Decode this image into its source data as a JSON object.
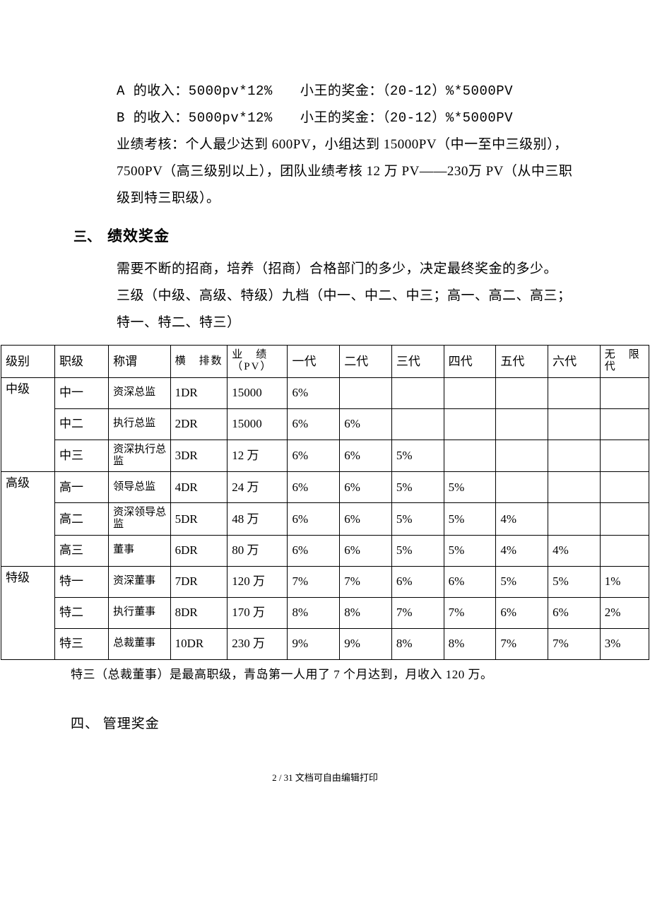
{
  "body": {
    "line1": "A 的收入：5000pv*12%　　小王的奖金：（20-12）%*5000PV",
    "line2": "B 的收入：5000pv*12%　　小王的奖金：（20-12）%*5000PV",
    "line3": "业绩考核：个人最少达到 600PV，小组达到 15000PV（中一至中三级别），7500PV（高三级别以上），团队业绩考核 12 万 PV——230万 PV（从中三职级到特三职级）。"
  },
  "sec3": {
    "num": "三、",
    "title": "绩效奖金",
    "p1": "需要不断的招商，培养（招商）合格部门的多少，决定最终奖金的多少。",
    "p2": "三级（中级、高级、特级）九档（中一、中二、中三；高一、高二、高三；特一、特二、特三）"
  },
  "table": {
    "columns": [
      "级别",
      "职级",
      "称谓",
      "横　排数",
      "业　绩（PV）",
      "一代",
      "二代",
      "三代",
      "四代",
      "五代",
      "六代",
      "无　限代"
    ],
    "groups": [
      {
        "level": "中级",
        "rows": [
          {
            "rank": "中一",
            "title": "资深总监",
            "dr": "1DR",
            "pv": "15000",
            "g": [
              "6%",
              "",
              "",
              "",
              "",
              "",
              ""
            ]
          },
          {
            "rank": "中二",
            "title": "执行总监",
            "dr": "2DR",
            "pv": "15000",
            "g": [
              "6%",
              "6%",
              "",
              "",
              "",
              "",
              ""
            ]
          },
          {
            "rank": "中三",
            "title": "资深执行总监",
            "dr": "3DR",
            "pv": "12 万",
            "g": [
              "6%",
              "6%",
              "5%",
              "",
              "",
              "",
              ""
            ]
          }
        ]
      },
      {
        "level": "高级",
        "rows": [
          {
            "rank": "高一",
            "title": "领导总监",
            "dr": "4DR",
            "pv": "24 万",
            "g": [
              "6%",
              "6%",
              "5%",
              "5%",
              "",
              "",
              ""
            ]
          },
          {
            "rank": "高二",
            "title": "资深领导总监",
            "dr": "5DR",
            "pv": "48 万",
            "g": [
              "6%",
              "6%",
              "5%",
              "5%",
              "4%",
              "",
              ""
            ]
          },
          {
            "rank": "高三",
            "title": "董事",
            "dr": "6DR",
            "pv": "80 万",
            "g": [
              "6%",
              "6%",
              "5%",
              "5%",
              "4%",
              "4%",
              ""
            ]
          }
        ]
      },
      {
        "level": "特级",
        "rows": [
          {
            "rank": "特一",
            "title": "资深董事",
            "dr": "7DR",
            "pv": "120 万",
            "g": [
              "7%",
              "7%",
              "6%",
              "6%",
              "5%",
              "5%",
              "1%"
            ]
          },
          {
            "rank": "特二",
            "title": "执行董事",
            "dr": "8DR",
            "pv": "170 万",
            "g": [
              "8%",
              "8%",
              "7%",
              "7%",
              "6%",
              "6%",
              "2%"
            ]
          },
          {
            "rank": "特三",
            "title": "总裁董事",
            "dr": "10DR",
            "pv": "230 万",
            "g": [
              "9%",
              "9%",
              "8%",
              "8%",
              "7%",
              "7%",
              "3%"
            ]
          }
        ]
      }
    ]
  },
  "note": "特三（总裁董事）是最高职级，青岛第一人用了 7 个月达到，月收入 120 万。",
  "sec4": {
    "num": "四、",
    "title": "管理奖金"
  },
  "footer": "2 / 31 文档可自由编辑打印"
}
